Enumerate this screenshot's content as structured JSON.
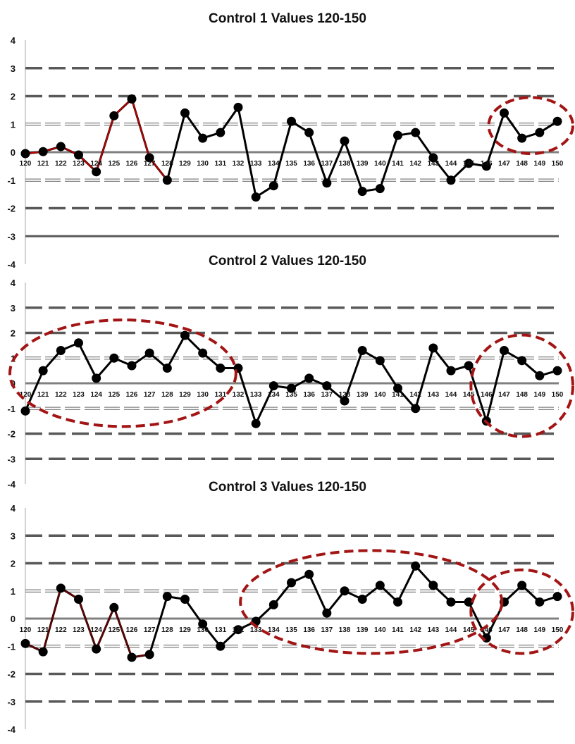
{
  "chart_data": [
    {
      "type": "line",
      "title": "Control 1 Values 120-150",
      "xlabel": "",
      "ylabel": "",
      "ylim": [
        -4,
        4
      ],
      "yticks": [
        "4",
        "3",
        "2",
        "1",
        "0",
        "-1",
        "-2",
        "-3",
        "-4"
      ],
      "categories": [
        "120",
        "121",
        "122",
        "123",
        "124",
        "125",
        "126",
        "127",
        "128",
        "129",
        "130",
        "131",
        "132",
        "133",
        "134",
        "135",
        "136",
        "137",
        "138",
        "139",
        "140",
        "141",
        "142",
        "143",
        "144",
        "145",
        "146",
        "147",
        "148",
        "149",
        "150"
      ],
      "values": [
        -0.05,
        0.02,
        0.2,
        -0.1,
        -0.7,
        1.3,
        1.9,
        -0.2,
        -1.0,
        1.4,
        0.5,
        0.7,
        1.6,
        -1.6,
        -1.2,
        1.1,
        0.7,
        -1.1,
        0.4,
        -1.4,
        -1.3,
        0.6,
        0.7,
        -0.2,
        -1.0,
        -0.4,
        -0.5,
        1.4,
        0.5,
        0.7,
        1.1
      ],
      "reference_lines": [
        {
          "value": 3,
          "style": "dashed",
          "color": "#595959"
        },
        {
          "value": 2,
          "style": "dashed",
          "color": "#595959"
        },
        {
          "value": 1,
          "style": "double-dashed",
          "color": "#808080"
        },
        {
          "value": 0,
          "style": "solid",
          "color": "#808080"
        },
        {
          "value": -1,
          "style": "double-dashed",
          "color": "#808080"
        },
        {
          "value": -2,
          "style": "dashed",
          "color": "#595959"
        },
        {
          "value": -3,
          "style": "solid",
          "color": "#595959"
        }
      ],
      "highlight_segment": {
        "start": "120",
        "end": "128",
        "color": "#c00000"
      },
      "annotations": [
        {
          "type": "dashed-ellipse",
          "from": "147",
          "to": "150",
          "color": "#a31515"
        }
      ]
    },
    {
      "type": "line",
      "title": "Control 2 Values 120-150",
      "xlabel": "",
      "ylabel": "",
      "ylim": [
        -4,
        4
      ],
      "yticks": [
        "4",
        "3",
        "2",
        "1",
        "0",
        "-1",
        "-2",
        "-3",
        "-4"
      ],
      "categories": [
        "120",
        "121",
        "122",
        "123",
        "124",
        "125",
        "126",
        "127",
        "128",
        "129",
        "130",
        "131",
        "132",
        "133",
        "134",
        "135",
        "136",
        "137",
        "138",
        "139",
        "140",
        "141",
        "142",
        "143",
        "144",
        "145",
        "146",
        "147",
        "148",
        "149",
        "150"
      ],
      "values": [
        -1.1,
        0.5,
        1.3,
        1.6,
        0.2,
        1.0,
        0.7,
        1.2,
        0.6,
        1.9,
        1.2,
        0.6,
        0.6,
        -1.6,
        -0.1,
        -0.2,
        0.2,
        -0.1,
        -0.7,
        1.3,
        0.9,
        -0.2,
        -1.0,
        1.4,
        0.5,
        0.7,
        -1.5,
        1.3,
        0.9,
        0.3,
        0.5
      ],
      "reference_lines": [
        {
          "value": 3,
          "style": "dashed",
          "color": "#595959"
        },
        {
          "value": 2,
          "style": "dashed",
          "color": "#595959"
        },
        {
          "value": 1,
          "style": "double-dashed",
          "color": "#808080"
        },
        {
          "value": 0,
          "style": "solid",
          "color": "#808080"
        },
        {
          "value": -1,
          "style": "double-dashed",
          "color": "#808080"
        },
        {
          "value": -2,
          "style": "dashed",
          "color": "#595959"
        },
        {
          "value": -3,
          "style": "dashed",
          "color": "#595959"
        }
      ],
      "annotations": [
        {
          "type": "dashed-ellipse",
          "from": "120",
          "to": "131",
          "color": "#a31515"
        },
        {
          "type": "dashed-ellipse",
          "from": "146",
          "to": "150",
          "color": "#a31515"
        }
      ]
    },
    {
      "type": "line",
      "title": "Control 3 Values 120-150",
      "xlabel": "",
      "ylabel": "",
      "ylim": [
        -4,
        4
      ],
      "yticks": [
        "4",
        "3",
        "2",
        "1",
        "0",
        "-1",
        "-2",
        "-3",
        "-4"
      ],
      "categories": [
        "120",
        "121",
        "122",
        "123",
        "124",
        "125",
        "126",
        "127",
        "128",
        "129",
        "130",
        "131",
        "132",
        "133",
        "134",
        "135",
        "136",
        "137",
        "138",
        "139",
        "140",
        "141",
        "142",
        "143",
        "144",
        "145",
        "146",
        "147",
        "148",
        "149",
        "150"
      ],
      "values": [
        -0.9,
        -1.2,
        1.1,
        0.7,
        -1.1,
        0.4,
        -1.4,
        -1.3,
        0.8,
        0.7,
        -0.2,
        -1.0,
        -0.4,
        -0.1,
        0.5,
        1.3,
        1.6,
        0.2,
        1.0,
        0.7,
        1.2,
        0.6,
        1.9,
        1.2,
        0.6,
        0.6,
        -0.7,
        0.6,
        1.2,
        0.6,
        0.8
      ],
      "reference_lines": [
        {
          "value": 3,
          "style": "dashed",
          "color": "#595959"
        },
        {
          "value": 2,
          "style": "dashed",
          "color": "#595959"
        },
        {
          "value": 1,
          "style": "double-dashed",
          "color": "#808080"
        },
        {
          "value": 0,
          "style": "solid",
          "color": "#808080"
        },
        {
          "value": -1,
          "style": "double-dashed",
          "color": "#808080"
        },
        {
          "value": -2,
          "style": "dashed",
          "color": "#595959"
        },
        {
          "value": -3,
          "style": "dashed",
          "color": "#595959"
        }
      ],
      "highlight_segment": {
        "start": "120",
        "end": "127",
        "color": "#6b0000"
      },
      "annotations": [
        {
          "type": "dashed-ellipse",
          "from": "133",
          "to": "146",
          "color": "#a31515"
        },
        {
          "type": "dashed-ellipse",
          "from": "146",
          "to": "150",
          "color": "#a31515"
        }
      ]
    }
  ]
}
